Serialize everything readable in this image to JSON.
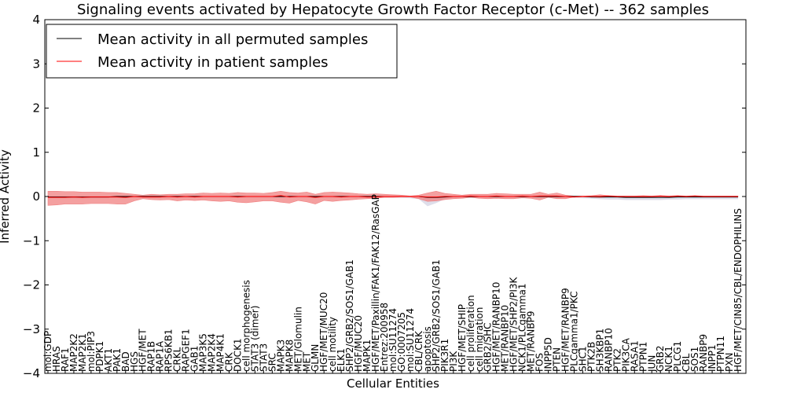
{
  "chart_data": {
    "type": "line",
    "title": "Signaling events activated by Hepatocyte Growth Factor Receptor (c-Met) -- 362 samples",
    "xlabel": "Cellular Entities",
    "ylabel": "Inferred Activity",
    "ylim": [
      -4,
      4
    ],
    "yticks": [
      4,
      3,
      2,
      1,
      0,
      -1,
      -2,
      -3,
      -4
    ],
    "ytick_labels": [
      "4",
      "3",
      "2",
      "1",
      "0",
      "−1",
      "−2",
      "−3",
      "−4"
    ],
    "legend": {
      "position": "top-left",
      "entries": [
        {
          "label": "Mean activity in all permuted samples",
          "color": "#000000"
        },
        {
          "label": "Mean activity in patient samples",
          "color": "#ff0000"
        }
      ]
    },
    "colors": {
      "patient_line": "#ff0000",
      "patient_band": "#f08080",
      "permuted_line": "#000000",
      "permuted_band": "#c8c8dc"
    },
    "categories": [
      "mol:GDP",
      "HRAS",
      "RAF1",
      "MAP2K2",
      "MAP2K1",
      "mol:PIP3",
      "PDPK1",
      "AKT1",
      "PAK1",
      "BAD",
      "HGS",
      "HGF/MET",
      "RAP1B",
      "RAP1A",
      "RPS6KB1",
      "CRKL",
      "RAPGEF1",
      "GAB1",
      "MAP3K5",
      "MAP2K4",
      "MAP4K1",
      "CRK",
      "DOCK1",
      "cell morphogenesis",
      "STAT3 (dimer)",
      "STAT3",
      "SRC",
      "MAPK3",
      "MAPK8",
      "MET/Glomulin",
      "MET",
      "GLMN",
      "HGF/MET/MUC20",
      "cell motility",
      "ELK1",
      "SHP2/GRB2/SOS1/GAB1",
      "HGF/MUC20",
      "MAPK1",
      "HGF/MET/Paxillin/FAK1/FAK12/RasGAP",
      "Entrez:200958",
      "mol:SU11274",
      "GO:0007205",
      "mol:SU11274 ",
      "CBL/CRK",
      "apoptosis",
      "SHP2/GRB2/SOS1/GAB1 ",
      "PIK3R1",
      "PI3K",
      "HGF/MET/SHIP",
      "cell proliferation",
      "cell migration",
      "GRB2/SHC",
      "HGF/MET/RANBP10",
      "MET/RANBP10",
      "HGF/MET/SHP2/PI3K",
      "NCK1/PLCgamma1",
      "MET/RANBP9",
      "FOS",
      "INPP5D",
      "PTEN",
      "HGF/MET/RANBP9",
      "PLCgamma1/PKC",
      "SHC1",
      "PTK2B",
      "SH3KBP1",
      "RANBP10",
      "PTK2",
      "PIK3CA",
      "RASA1",
      "PTPN1",
      "JUN",
      "GRB2",
      "NCK1",
      "PLCG1",
      "CBL",
      "SOS1",
      "RANBP9",
      "INPP1",
      "PTPN11",
      "PXN",
      "HGF/MET/CIN85/CBL/ENDOPHILINS"
    ],
    "series": [
      {
        "name": "Mean activity in patient samples",
        "values": [
          -0.02,
          -0.02,
          -0.02,
          -0.01,
          -0.02,
          -0.01,
          -0.01,
          -0.01,
          -0.01,
          -0.02,
          0.0,
          -0.01,
          -0.01,
          -0.01,
          0.0,
          -0.01,
          0.0,
          -0.01,
          0.0,
          0.0,
          0.0,
          0.0,
          -0.01,
          0.0,
          0.0,
          0.0,
          0.0,
          0.02,
          -0.01,
          0.0,
          0.0,
          -0.02,
          0.0,
          0.0,
          -0.01,
          0.0,
          0.0,
          -0.01,
          -0.01,
          0.0,
          0.0,
          0.0,
          0.0,
          0.0,
          -0.01,
          -0.01,
          0.0,
          0.0,
          0.0,
          0.01,
          0.0,
          0.0,
          0.01,
          0.0,
          0.0,
          0.01,
          0.0,
          0.01,
          0.01,
          0.01,
          0.0,
          -0.01,
          0.0,
          0.0,
          0.0,
          0.01,
          0.0,
          0.0,
          0.0,
          0.0,
          0.0,
          0.01,
          0.0,
          0.01,
          0.0,
          0.01,
          0.0,
          0.0,
          0.0,
          0.0,
          0.0
        ],
        "upper": [
          0.12,
          0.12,
          0.11,
          0.11,
          0.1,
          0.1,
          0.1,
          0.09,
          0.09,
          0.07,
          0.05,
          0.03,
          0.05,
          0.04,
          0.05,
          0.05,
          0.06,
          0.06,
          0.08,
          0.07,
          0.08,
          0.07,
          0.09,
          0.08,
          0.08,
          0.07,
          0.09,
          0.12,
          0.09,
          0.08,
          0.1,
          0.05,
          0.09,
          0.1,
          0.09,
          0.08,
          0.06,
          0.05,
          0.06,
          0.05,
          0.04,
          0.03,
          0.01,
          0.03,
          0.08,
          0.12,
          0.07,
          0.05,
          0.03,
          0.05,
          0.05,
          0.05,
          0.07,
          0.06,
          0.05,
          0.05,
          0.05,
          0.1,
          0.05,
          0.08,
          0.03,
          0.01,
          0.01,
          0.02,
          0.04,
          0.02,
          0.01,
          0.01,
          0.01,
          0.02,
          0.01,
          0.02,
          0.01,
          0.02,
          0.01,
          0.02,
          0.01,
          0.01,
          0.01,
          0.01,
          0.01
        ],
        "lower": [
          -0.2,
          -0.19,
          -0.17,
          -0.17,
          -0.17,
          -0.16,
          -0.16,
          -0.16,
          -0.17,
          -0.17,
          -0.1,
          -0.05,
          -0.07,
          -0.08,
          -0.07,
          -0.1,
          -0.08,
          -0.09,
          -0.08,
          -0.1,
          -0.11,
          -0.1,
          -0.13,
          -0.14,
          -0.12,
          -0.1,
          -0.1,
          -0.13,
          -0.15,
          -0.09,
          -0.12,
          -0.17,
          -0.09,
          -0.11,
          -0.09,
          -0.08,
          -0.06,
          -0.05,
          -0.04,
          -0.02,
          -0.02,
          -0.01,
          -0.01,
          -0.05,
          -0.11,
          -0.1,
          -0.07,
          -0.05,
          -0.04,
          -0.02,
          -0.04,
          -0.05,
          -0.04,
          -0.05,
          -0.05,
          -0.03,
          -0.04,
          -0.08,
          -0.02,
          -0.05,
          -0.05,
          -0.01,
          -0.01,
          -0.01,
          -0.02,
          -0.01,
          -0.01,
          -0.01,
          -0.01,
          -0.01,
          -0.01,
          -0.01,
          -0.01,
          -0.01,
          -0.01,
          -0.01,
          -0.01,
          -0.01,
          -0.01,
          -0.01,
          -0.01
        ]
      },
      {
        "name": "Mean activity in all permuted samples",
        "values": [
          -0.01,
          -0.01,
          -0.01,
          -0.01,
          -0.01,
          -0.01,
          -0.01,
          -0.01,
          0.0,
          0.0,
          0.0,
          0.0,
          0.0,
          0.0,
          0.0,
          0.0,
          0.0,
          0.0,
          0.0,
          0.0,
          0.0,
          0.0,
          0.0,
          0.0,
          0.0,
          0.0,
          0.0,
          0.0,
          0.0,
          0.0,
          0.0,
          0.0,
          0.0,
          0.0,
          0.0,
          0.0,
          0.0,
          0.0,
          0.0,
          0.0,
          0.0,
          0.0,
          0.0,
          0.0,
          -0.02,
          -0.02,
          -0.01,
          0.0,
          0.0,
          0.0,
          0.0,
          0.0,
          0.0,
          0.0,
          0.0,
          0.0,
          0.0,
          0.0,
          0.0,
          0.0,
          0.0,
          0.0,
          0.0,
          -0.01,
          -0.01,
          -0.01,
          -0.01,
          -0.02,
          -0.02,
          -0.02,
          -0.02,
          -0.02,
          -0.02,
          -0.01,
          -0.01,
          -0.01,
          -0.01,
          -0.01,
          -0.01,
          -0.01,
          -0.01
        ],
        "upper": [
          0.02,
          0.02,
          0.02,
          0.02,
          0.02,
          0.02,
          0.02,
          0.02,
          0.02,
          0.02,
          0.02,
          0.02,
          0.02,
          0.02,
          0.02,
          0.02,
          0.02,
          0.02,
          0.02,
          0.02,
          0.02,
          0.02,
          0.02,
          0.02,
          0.02,
          0.02,
          0.02,
          0.02,
          0.02,
          0.02,
          0.02,
          0.02,
          0.02,
          0.02,
          0.02,
          0.02,
          0.02,
          0.02,
          0.02,
          0.02,
          0.02,
          0.02,
          0.02,
          0.02,
          0.01,
          0.01,
          0.01,
          0.02,
          0.02,
          0.02,
          0.02,
          0.02,
          0.02,
          0.02,
          0.02,
          0.02,
          0.02,
          0.02,
          0.02,
          0.02,
          0.02,
          0.02,
          0.02,
          0.01,
          0.01,
          0.01,
          0.01,
          0.0,
          0.0,
          0.0,
          0.0,
          0.0,
          0.0,
          0.01,
          0.01,
          0.01,
          0.01,
          0.01,
          0.01,
          0.01,
          0.01
        ],
        "lower": [
          -0.04,
          -0.04,
          -0.04,
          -0.04,
          -0.04,
          -0.04,
          -0.04,
          -0.03,
          -0.03,
          -0.03,
          -0.03,
          -0.03,
          -0.03,
          -0.03,
          -0.03,
          -0.03,
          -0.03,
          -0.03,
          -0.03,
          -0.03,
          -0.03,
          -0.03,
          -0.03,
          -0.03,
          -0.03,
          -0.03,
          -0.03,
          -0.03,
          -0.03,
          -0.03,
          -0.03,
          -0.03,
          -0.03,
          -0.03,
          -0.03,
          -0.03,
          -0.03,
          -0.03,
          -0.03,
          -0.03,
          -0.03,
          -0.03,
          -0.04,
          -0.06,
          -0.22,
          -0.15,
          -0.06,
          -0.04,
          -0.03,
          -0.03,
          -0.03,
          -0.03,
          -0.03,
          -0.03,
          -0.03,
          -0.03,
          -0.03,
          -0.03,
          -0.03,
          -0.03,
          -0.03,
          -0.03,
          -0.04,
          -0.05,
          -0.06,
          -0.07,
          -0.07,
          -0.08,
          -0.08,
          -0.08,
          -0.08,
          -0.08,
          -0.07,
          -0.07,
          -0.06,
          -0.06,
          -0.06,
          -0.06,
          -0.06,
          -0.06,
          -0.06
        ]
      }
    ]
  }
}
